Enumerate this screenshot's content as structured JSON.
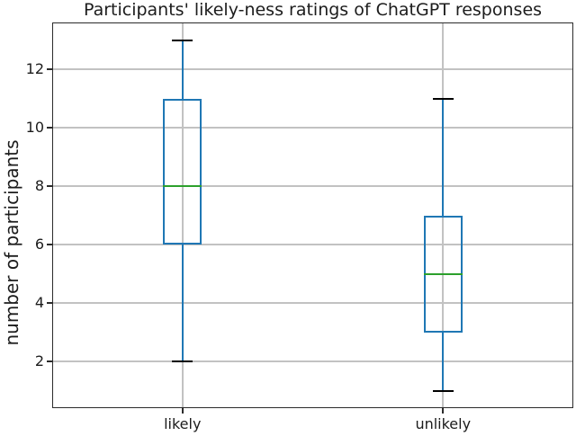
{
  "title": "Participants' likely-ness ratings of ChatGPT responses",
  "ylabel": "number of participants",
  "colors": {
    "box": "#1f77b4",
    "whisker": "#1f77b4",
    "median": "#2ca02c",
    "cap": "#000000",
    "grid": "#c2c2c2",
    "spine": "#2b2b2b",
    "text": "#1c1c1c",
    "background": "#ffffff"
  },
  "chart_data": {
    "type": "boxplot",
    "title": "Participants' likely-ness ratings of ChatGPT responses",
    "ylabel": "number of participants",
    "xlabel": "",
    "categories": [
      "likely",
      "unlikely"
    ],
    "positions": [
      1,
      2
    ],
    "series": [
      {
        "name": "likely",
        "whislo": 2,
        "q1": 6,
        "med": 8,
        "q3": 11,
        "whishi": 13,
        "fliers": []
      },
      {
        "name": "unlikely",
        "whislo": 1,
        "q1": 3,
        "med": 5,
        "q3": 7,
        "whishi": 11,
        "fliers": []
      }
    ],
    "yticks": [
      2,
      4,
      6,
      8,
      10,
      12
    ],
    "ylim": [
      0.4,
      13.6
    ],
    "xlim": [
      0.5,
      2.5
    ],
    "box_width_units": 0.15,
    "grid": true,
    "legend": false
  }
}
